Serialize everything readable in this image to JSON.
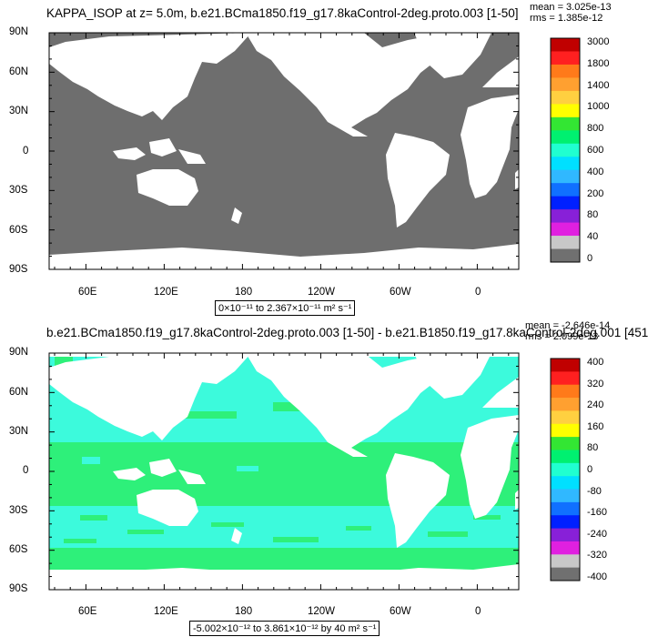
{
  "panel1": {
    "title": "KAPPA_ISOP at z=   5.0m, b.e21.BCma1850.f19_g17.8kaControl-2deg.proto.003 [1-50]",
    "mean": "mean = 3.025e-13",
    "rms": "rms = 1.385e-12",
    "range": "0×10⁻¹¹ to 2.367×10⁻¹¹ m² s⁻¹",
    "colorbar_labels": [
      "3000",
      "1800",
      "1400",
      "1000",
      "800",
      "600",
      "400",
      "200",
      "80",
      "40",
      "0"
    ],
    "colorbar_colors": [
      "#c00000",
      "#ff2020",
      "#ff7a1a",
      "#ffa030",
      "#ffd040",
      "#ffff00",
      "#33e633",
      "#00f070",
      "#20ffd0",
      "#00e0ff",
      "#30b8ff",
      "#1070ff",
      "#0020ff",
      "#8820d8",
      "#e020e0",
      "#c8c8c8",
      "#707070"
    ],
    "land_color": "#ffffff",
    "ocean_color": "#6e6e6e"
  },
  "panel2": {
    "title": "b.e21.BCma1850.f19_g17.8kaControl-2deg.proto.003 [1-50] - b.e21.B1850.f19_g17.8kaControl-2deg.001 [451",
    "mean": "mean = -2.646e-14",
    "rms": "rms = 2.099e-13",
    "range": "-5.002×10⁻¹² to 3.861×10⁻¹² by 40 m² s⁻¹",
    "colorbar_labels": [
      "400",
      "320",
      "240",
      "160",
      "80",
      "0",
      "-80",
      "-160",
      "-240",
      "-320",
      "-400"
    ],
    "colorbar_colors": [
      "#c00000",
      "#ff2020",
      "#ff7a1a",
      "#ffa030",
      "#ffd040",
      "#ffff00",
      "#33e633",
      "#00f070",
      "#20ffd0",
      "#00e0ff",
      "#30b8ff",
      "#1070ff",
      "#0020ff",
      "#8820d8",
      "#e020e0",
      "#c8c8c8",
      "#707070"
    ],
    "dominant_colors": [
      "#2ef07a",
      "#3cfadc"
    ]
  },
  "lat_labels": [
    "90N",
    "60N",
    "30N",
    "0",
    "30S",
    "60S",
    "90S"
  ],
  "lon_labels": [
    "60E",
    "120E",
    "180",
    "120W",
    "60W",
    "0"
  ]
}
